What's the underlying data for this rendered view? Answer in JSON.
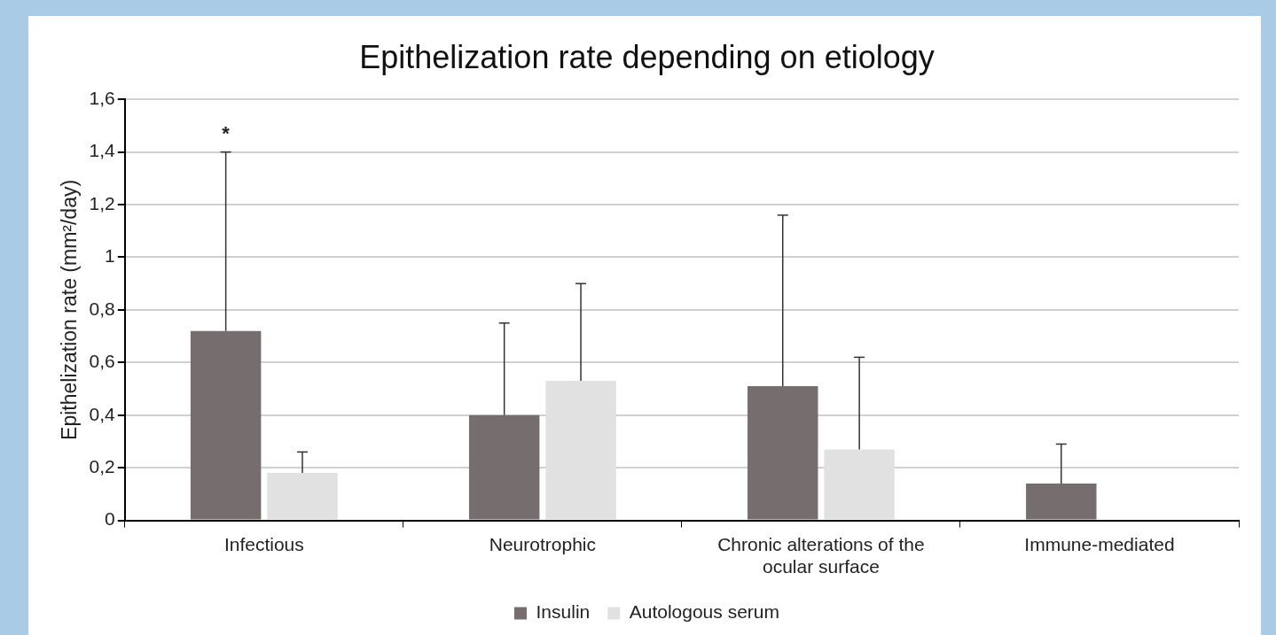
{
  "chart_data": {
    "type": "bar",
    "title": "Epithelization rate depending on etiology",
    "ylabel": "Epithelization rate (mm²/day)",
    "categories": [
      "Infectious",
      "Neurotrophic",
      "Chronic alterations of the ocular surface",
      "Immune-mediated"
    ],
    "series": [
      {
        "name": "Insulin",
        "color": "#756d6e",
        "values": [
          0.72,
          0.4,
          0.51,
          0.14
        ],
        "errors": [
          [
            0.72,
            1.4
          ],
          [
            0.4,
            0.75
          ],
          [
            0.51,
            1.16
          ],
          [
            0.14,
            0.29
          ]
        ]
      },
      {
        "name": "Autologous serum",
        "color": "#e1e1e1",
        "values": [
          0.18,
          0.53,
          0.27,
          null
        ],
        "errors": [
          [
            0.18,
            0.26
          ],
          [
            0.53,
            0.9
          ],
          [
            0.27,
            0.62
          ],
          null
        ]
      }
    ],
    "ylim": [
      0,
      1.6
    ],
    "yticks": [
      0,
      {
        "value": 0.2,
        "label": "0,2"
      },
      {
        "value": 0.4,
        "label": "0,4"
      },
      {
        "value": 0.6,
        "label": "0,6"
      },
      {
        "value": 0.8,
        "label": "0,8"
      },
      1,
      {
        "value": 1.2,
        "label": "1,2"
      },
      {
        "value": 1.4,
        "label": "1,4"
      },
      {
        "value": 1.6,
        "label": "1,6"
      }
    ],
    "annotations": [
      "*"
    ],
    "grid": "y",
    "legend": "bottom"
  }
}
